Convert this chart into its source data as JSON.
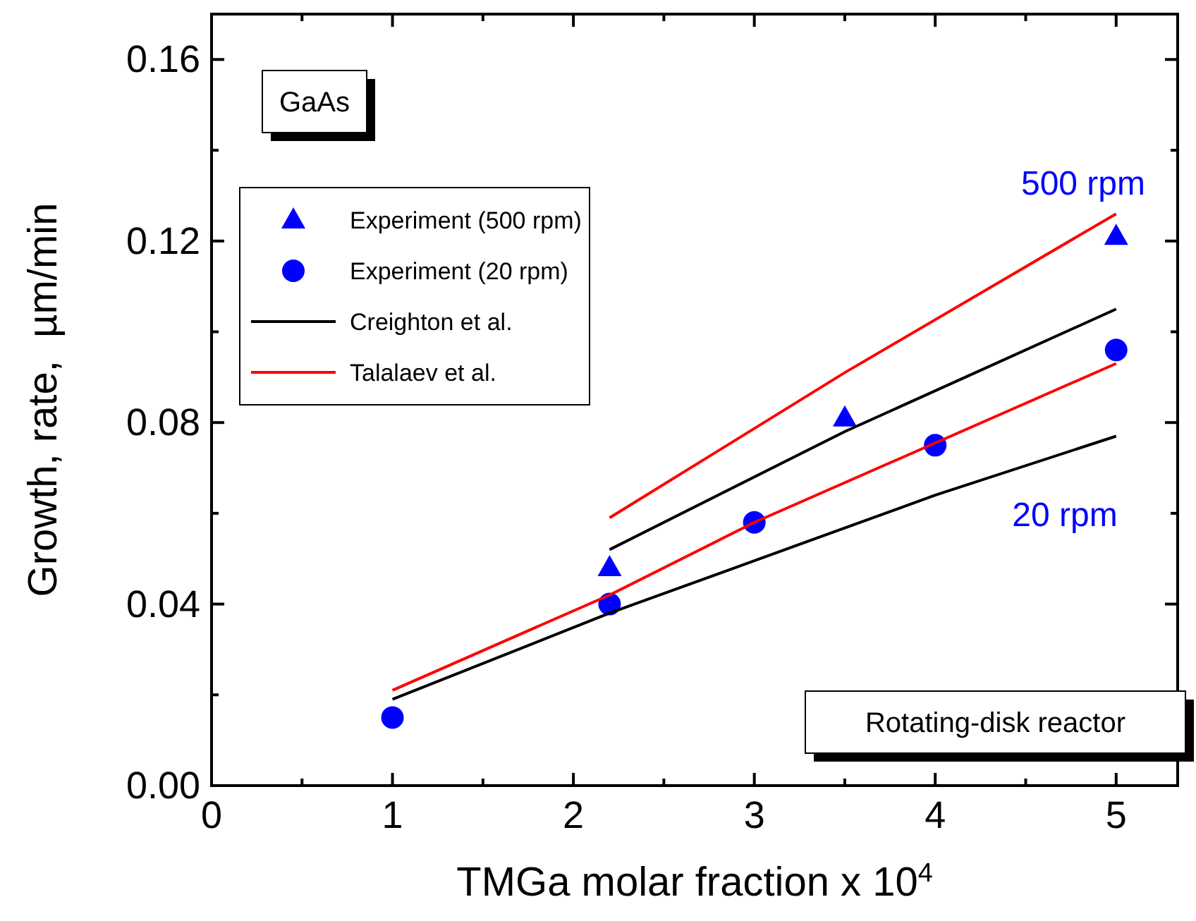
{
  "chart_data": {
    "type": "scatter",
    "xlabel": "TMGa molar fraction x 10$^{4}$",
    "ylabel": "Growth, rate,  µm/min",
    "xlim": [
      0,
      5.34
    ],
    "ylim": [
      0,
      0.17
    ],
    "xticks": [
      0,
      {
        "value": 0.5,
        "label": null
      },
      1,
      {
        "value": 1.5,
        "label": null
      },
      2,
      {
        "value": 2.5,
        "label": null
      },
      3,
      {
        "value": 3.5,
        "label": null
      },
      4,
      {
        "value": 4.5,
        "label": null
      },
      5
    ],
    "yticks": [
      {
        "value": 0,
        "label": "0.00"
      },
      {
        "value": 0.02,
        "label": null
      },
      0.04,
      {
        "value": 0.06,
        "label": null
      },
      0.08,
      {
        "value": 0.1,
        "label": null
      },
      0.12,
      {
        "value": 0.14,
        "label": null
      },
      0.16
    ],
    "legend": "left",
    "grid": false,
    "series": [
      {
        "name": "Experiment (500 rpm)",
        "marker": "triangle",
        "color": "#0000ff",
        "x": [
          2.2,
          3.5,
          5
        ],
        "values": [
          0.048,
          0.081,
          0.121
        ]
      },
      {
        "name": "Experiment (20 rpm)",
        "marker": "circle",
        "color": "#0000ff",
        "x": [
          1,
          2.2,
          3,
          4,
          5
        ],
        "values": [
          0.015,
          0.04,
          0.058,
          0.075,
          0.096
        ]
      },
      {
        "name": "Creighton et al.",
        "type": "line",
        "marker": "none",
        "color": "#000000",
        "x": [
          2.2,
          3.5,
          5
        ],
        "values": [
          0.052,
          0.078,
          0.105
        ]
      },
      {
        "name": "Talalaev et al.",
        "type": "line",
        "marker": "none",
        "color": "#ff0000",
        "x": [
          2.2,
          3.5,
          5
        ],
        "values": [
          0.059,
          0.091,
          0.126
        ]
      },
      {
        "type": "line",
        "marker": "none",
        "color": "#000000",
        "x": [
          1,
          2.2,
          4,
          5
        ],
        "values": [
          0.019,
          0.038,
          0.064,
          0.077
        ]
      },
      {
        "type": "line",
        "marker": "none",
        "color": "#ff0000",
        "x": [
          1,
          2.2,
          3,
          5
        ],
        "values": [
          0.021,
          0.042,
          0.058,
          0.093
        ]
      }
    ],
    "annotations": [
      "GaAs",
      "Rotating-disk reactor",
      "500 rpm",
      "20 rpm"
    ]
  }
}
